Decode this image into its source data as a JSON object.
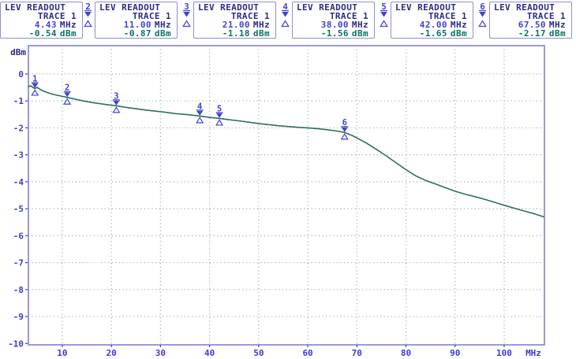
{
  "colors": {
    "accent_blue": "#4343cf",
    "navy": "#2b2b85",
    "teal": "#0b7263",
    "axis_border": "#8080cc",
    "axis_label": "#3c3ccc",
    "grid_dots": "#86a292",
    "trace": "#2f6e5e",
    "box_border": "#8e8ed0",
    "background": "#ffffff"
  },
  "header": {
    "units": [
      {
        "marker": "1",
        "icon_visible": false,
        "title": "LEV READOUT",
        "subtitle": "TRACE 1",
        "freq": "4.43",
        "freq_unit": "MHz",
        "level": "-0.54",
        "level_unit": "dBm"
      },
      {
        "marker": "2",
        "icon_visible": true,
        "title": "LEV READOUT",
        "subtitle": "TRACE 1",
        "freq": "11.00",
        "freq_unit": "MHz",
        "level": "-0.87",
        "level_unit": "dBm"
      },
      {
        "marker": "3",
        "icon_visible": true,
        "title": "LEV READOUT",
        "subtitle": "TRACE 1",
        "freq": "21.00",
        "freq_unit": "MHz",
        "level": "-1.18",
        "level_unit": "dBm"
      },
      {
        "marker": "4",
        "icon_visible": true,
        "title": "LEV READOUT",
        "subtitle": "TRACE 1",
        "freq": "38.00",
        "freq_unit": "MHz",
        "level": "-1.56",
        "level_unit": "dBm"
      },
      {
        "marker": "5",
        "icon_visible": true,
        "title": "LEV READOUT",
        "subtitle": "TRACE 1",
        "freq": "42.00",
        "freq_unit": "MHz",
        "level": "-1.65",
        "level_unit": "dBm"
      },
      {
        "marker": "6",
        "icon_visible": true,
        "title": "LEV READOUT",
        "subtitle": "TRACE 1",
        "freq": "67.50",
        "freq_unit": "MHz",
        "level": "-2.17",
        "level_unit": "dBm"
      }
    ]
  },
  "chart_data": {
    "type": "line",
    "title": "",
    "xlabel": "MHz",
    "ylabel": "dBm",
    "xlim": [
      3.1,
      108.2
    ],
    "ylim": [
      1.05,
      -10.05
    ],
    "xticks": [
      10,
      20,
      30,
      40,
      50,
      60,
      70,
      80,
      90,
      100
    ],
    "yticks": [
      0,
      -1,
      -2,
      -3,
      -4,
      -5,
      -6,
      -7,
      -8,
      -9,
      -10
    ],
    "grid": true,
    "legend_position": "none",
    "series": [
      {
        "name": "Trace 1",
        "x": [
          3.1,
          3.6,
          4.0,
          4.43,
          4.9,
          5.4,
          6,
          7,
          8,
          9,
          10,
          11,
          12.5,
          14,
          16,
          18,
          19.5,
          21,
          23,
          25,
          27,
          29,
          31,
          33,
          35,
          36.5,
          38,
          40,
          42,
          44,
          46,
          48,
          50,
          52,
          54,
          56,
          58,
          60,
          62,
          64,
          66,
          67.5,
          69,
          70.5,
          72,
          74,
          76,
          78,
          80,
          82,
          84,
          86,
          88,
          90,
          92,
          94,
          96,
          98,
          100,
          102,
          104,
          106,
          108
        ],
        "y": [
          -0.47,
          -0.44,
          -0.5,
          -0.54,
          -0.5,
          -0.56,
          -0.62,
          -0.69,
          -0.75,
          -0.79,
          -0.83,
          -0.87,
          -0.93,
          -0.99,
          -1.06,
          -1.11,
          -1.15,
          -1.18,
          -1.24,
          -1.29,
          -1.34,
          -1.38,
          -1.42,
          -1.47,
          -1.5,
          -1.53,
          -1.56,
          -1.61,
          -1.65,
          -1.7,
          -1.74,
          -1.79,
          -1.84,
          -1.88,
          -1.92,
          -1.95,
          -1.98,
          -2.0,
          -2.03,
          -2.07,
          -2.12,
          -2.17,
          -2.28,
          -2.42,
          -2.57,
          -2.8,
          -3.04,
          -3.3,
          -3.55,
          -3.78,
          -3.95,
          -4.08,
          -4.22,
          -4.35,
          -4.46,
          -4.55,
          -4.65,
          -4.76,
          -4.87,
          -4.98,
          -5.08,
          -5.18,
          -5.3
        ]
      }
    ],
    "markers": [
      {
        "label": "1",
        "freq": 4.43,
        "level": -0.54
      },
      {
        "label": "2",
        "freq": 11.0,
        "level": -0.87
      },
      {
        "label": "3",
        "freq": 21.0,
        "level": -1.18
      },
      {
        "label": "4",
        "freq": 38.0,
        "level": -1.56
      },
      {
        "label": "5",
        "freq": 42.0,
        "level": -1.65
      },
      {
        "label": "6",
        "freq": 67.5,
        "level": -2.17
      }
    ]
  }
}
